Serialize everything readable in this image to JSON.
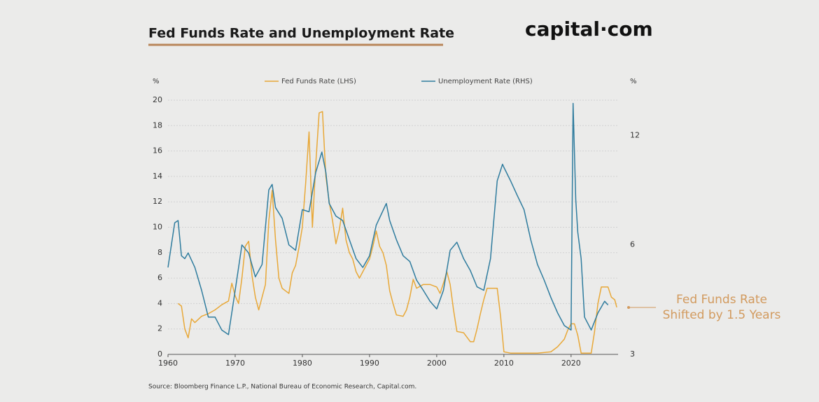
{
  "chart_data": {
    "type": "line",
    "title": "Fed Funds Rate and Unemployment Rate",
    "brand": "capital·com",
    "y_label": "%",
    "y2_label": "%",
    "annotation": [
      "Fed Funds Rate",
      "Shifted by 1.5 Years"
    ],
    "source": "Source: Bloomberg Finance L.P., National Bureau of Economic Research, Capital.com.",
    "xlim": [
      1960,
      2027
    ],
    "xticks": [
      1960,
      1970,
      1980,
      1990,
      2000,
      2010,
      2020
    ],
    "ylim": [
      0,
      20
    ],
    "yticks": [
      0,
      2,
      4,
      6,
      8,
      10,
      12,
      14,
      16,
      18,
      20
    ],
    "y2lim": [
      3,
      15
    ],
    "y2ticks": [
      3,
      6,
      12
    ],
    "y2log": true,
    "grid": true,
    "series": [
      {
        "name": "Fed Funds Rate (LHS)",
        "color": "#e8a838",
        "x": [
          1961.5,
          1962,
          1962.5,
          1963,
          1963.5,
          1964,
          1965,
          1966,
          1967,
          1968,
          1969,
          1969.5,
          1970,
          1970.5,
          1971,
          1971.5,
          1972,
          1972.5,
          1973,
          1973.5,
          1974,
          1974.5,
          1975,
          1975.5,
          1976,
          1976.5,
          1977,
          1977.5,
          1978,
          1978.5,
          1979,
          1979.5,
          1980,
          1980.5,
          1981,
          1981.5,
          1982,
          1982.5,
          1983,
          1983.5,
          1984,
          1984.5,
          1985,
          1985.5,
          1986,
          1986.5,
          1987,
          1987.5,
          1988,
          1988.5,
          1989,
          1989.5,
          1990,
          1990.5,
          1991,
          1991.5,
          1992,
          1992.5,
          1993,
          1993.5,
          1994,
          1995,
          1995.5,
          1996,
          1996.5,
          1997,
          1998,
          1999,
          2000,
          2000.5,
          2001,
          2001.5,
          2002,
          2002.5,
          2003,
          2004,
          2005,
          2005.5,
          2006,
          2006.5,
          2007,
          2007.5,
          2009,
          2009.5,
          2010,
          2011,
          2015,
          2017,
          2018,
          2019,
          2019.5,
          2020,
          2020.5,
          2021,
          2021.5,
          2023,
          2023.5,
          2024,
          2024.5,
          2025.5,
          2026,
          2026.5,
          2026.8
        ],
        "values": [
          4,
          3.8,
          2,
          1.3,
          2.8,
          2.5,
          3,
          3.2,
          3.5,
          3.9,
          4.2,
          5.6,
          4.6,
          4,
          6,
          8.5,
          8.9,
          6.2,
          4.5,
          3.5,
          4.5,
          5.5,
          10.5,
          12.9,
          9,
          6,
          5.2,
          5,
          4.8,
          6.4,
          7,
          8.4,
          10,
          13.5,
          17.5,
          10,
          15,
          19,
          19.1,
          14,
          12,
          10.5,
          8.7,
          9.8,
          11.5,
          9,
          8,
          7.5,
          6.5,
          6,
          6.5,
          7,
          7.5,
          8.5,
          9.7,
          8.5,
          8,
          7,
          5,
          4,
          3.1,
          3,
          3.5,
          4.5,
          5.9,
          5.2,
          5.5,
          5.5,
          5.3,
          4.8,
          5.6,
          6.5,
          5.5,
          3.5,
          1.8,
          1.7,
          1,
          1,
          2,
          3.2,
          4.3,
          5.2,
          5.2,
          3,
          0.2,
          0.1,
          0.1,
          0.2,
          0.6,
          1.2,
          1.9,
          2.4,
          2.4,
          1.5,
          0.1,
          0.1,
          1.8,
          4,
          5.3,
          5.3,
          4.5,
          4.3,
          3.7
        ]
      },
      {
        "name": "Unemployment Rate (RHS)",
        "color": "#2f7c9e",
        "axis": "y2",
        "x": [
          1960,
          1961,
          1961.5,
          1962,
          1962.5,
          1963,
          1964,
          1965,
          1966,
          1967,
          1968,
          1969,
          1970,
          1971,
          1972,
          1973,
          1974,
          1975,
          1975.5,
          1976,
          1977,
          1978,
          1979,
          1980,
          1981,
          1982,
          1982.9,
          1983.5,
          1984,
          1985,
          1986,
          1987,
          1988,
          1989,
          1990,
          1991,
          1992.5,
          1993,
          1994,
          1995,
          1996,
          1997,
          1998,
          1999,
          2000,
          2001,
          2002,
          2003,
          2004,
          2005,
          2006,
          2007,
          2008,
          2009,
          2009.8,
          2010,
          2011,
          2012,
          2013,
          2014,
          2015,
          2016,
          2017,
          2018,
          2019,
          2020,
          2020.3,
          2020.7,
          2021,
          2021.5,
          2022,
          2023,
          2024,
          2025,
          2025.5
        ],
        "values": [
          5.2,
          6.9,
          7,
          5.6,
          5.5,
          5.7,
          5.2,
          4.5,
          3.8,
          3.8,
          3.5,
          3.4,
          4.5,
          6,
          5.7,
          4.9,
          5.3,
          8.5,
          8.8,
          7.6,
          7.1,
          6,
          5.8,
          7.5,
          7.4,
          9.5,
          10.8,
          9.5,
          7.8,
          7.2,
          7,
          6.2,
          5.5,
          5.2,
          5.6,
          6.8,
          7.8,
          7,
          6.2,
          5.6,
          5.4,
          4.8,
          4.5,
          4.2,
          4,
          4.5,
          5.8,
          6.1,
          5.5,
          5.1,
          4.6,
          4.5,
          5.5,
          9,
          10,
          9.8,
          9,
          8.2,
          7.5,
          6.2,
          5.3,
          4.8,
          4.3,
          3.9,
          3.6,
          3.5,
          14.7,
          8,
          6.5,
          5.5,
          3.8,
          3.5,
          3.9,
          4.2,
          4.1
        ]
      }
    ]
  }
}
